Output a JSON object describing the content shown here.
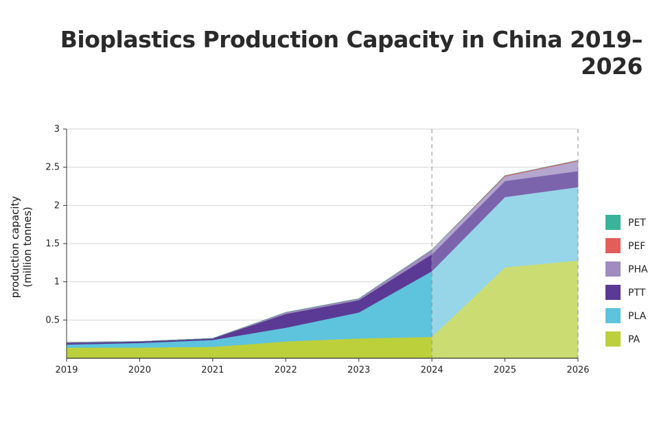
{
  "chart_data": {
    "type": "area",
    "stacked": true,
    "title": "Bioplastics Production Capacity in China 2019–2026",
    "ylabel_line1": "production capacity",
    "ylabel_line2": "(million tonnes)",
    "xlabel": "",
    "categories": [
      "2019",
      "2020",
      "2021",
      "2022",
      "2023",
      "2024",
      "2025",
      "2026"
    ],
    "ylim": [
      0,
      3
    ],
    "yticks": [
      "0.5",
      "1",
      "1.5",
      "2",
      "2.5",
      "3"
    ],
    "ytick_values": [
      0.5,
      1,
      1.5,
      2,
      2.5,
      3
    ],
    "forecast_from": "2024",
    "series": [
      {
        "name": "PA",
        "color": "#bcd03c",
        "forecast_color": "#cbdc72",
        "values": [
          0.14,
          0.14,
          0.15,
          0.22,
          0.26,
          0.28,
          1.19,
          1.28
        ]
      },
      {
        "name": "PLA",
        "color": "#5ec3dd",
        "forecast_color": "#97d6e8",
        "values": [
          0.04,
          0.06,
          0.09,
          0.18,
          0.34,
          0.86,
          0.92,
          0.96
        ]
      },
      {
        "name": "PTT",
        "color": "#5a3a94",
        "forecast_color": "#7c64ad",
        "values": [
          0.02,
          0.02,
          0.02,
          0.18,
          0.16,
          0.22,
          0.21,
          0.21
        ]
      },
      {
        "name": "PHA",
        "color": "#a08cbf",
        "forecast_color": "#b3a6cf",
        "values": [
          0.01,
          0.0,
          0.0,
          0.02,
          0.02,
          0.06,
          0.06,
          0.13
        ]
      },
      {
        "name": "PEF",
        "color": "#e35d5b",
        "forecast_color": "#e35d5b",
        "values": [
          0.0,
          0.0,
          0.0,
          0.0,
          0.0,
          0.0,
          0.01,
          0.01
        ]
      },
      {
        "name": "PET",
        "color": "#3bb39a",
        "forecast_color": "#3bb39a",
        "values": [
          0.0,
          0.0,
          0.0,
          0.0,
          0.0,
          0.0,
          0.0,
          0.0
        ]
      }
    ],
    "legend_order": [
      "PET",
      "PEF",
      "PHA",
      "PTT",
      "PLA",
      "PA"
    ],
    "legend_position": "right"
  }
}
